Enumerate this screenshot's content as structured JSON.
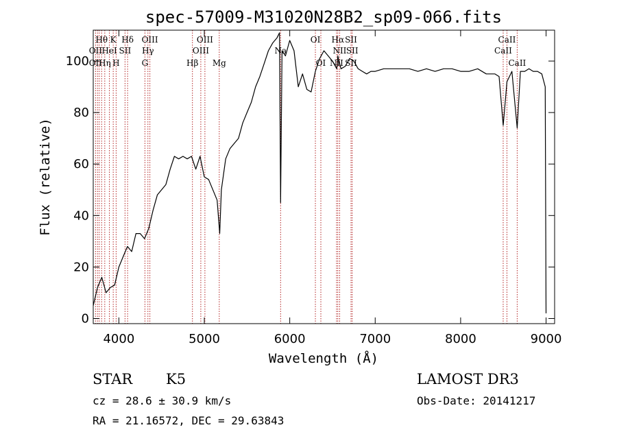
{
  "chart_data": {
    "type": "line",
    "title": "spec-57009-M31020N28B2_sp09-066.fits",
    "xlabel": "Wavelength (Å)",
    "ylabel": "Flux (relative)",
    "xlim": [
      3700,
      9100
    ],
    "ylim": [
      -2,
      112
    ],
    "x_ticks": [
      4000,
      5000,
      6000,
      7000,
      8000,
      9000
    ],
    "x_tick_labels": [
      "4000",
      "5000",
      "6000",
      "7000",
      "8000",
      "9000"
    ],
    "y_ticks": [
      0,
      20,
      40,
      60,
      80,
      100
    ],
    "y_tick_labels": [
      "0",
      "20",
      "40",
      "60",
      "80",
      "100"
    ],
    "grid": false,
    "line_color": "#000000",
    "marker_color": "#b22222",
    "series": [
      {
        "x": [
          3700,
          3750,
          3800,
          3850,
          3900,
          3950,
          4000,
          4050,
          4100,
          4150,
          4200,
          4250,
          4300,
          4350,
          4400,
          4450,
          4500,
          4550,
          4600,
          4650,
          4700,
          4750,
          4800,
          4850,
          4900,
          4950,
          5000,
          5050,
          5100,
          5150,
          5180,
          5200,
          5250,
          5300,
          5350,
          5400,
          5450,
          5500,
          5550,
          5600,
          5650,
          5700,
          5750,
          5800,
          5850,
          5880,
          5893,
          5910,
          5950,
          6000,
          6050,
          6100,
          6150,
          6200,
          6250,
          6300,
          6350,
          6400,
          6450,
          6500,
          6550,
          6563,
          6600,
          6650,
          6700,
          6750,
          6800,
          6850,
          6900,
          6950,
          7000,
          7100,
          7200,
          7300,
          7400,
          7500,
          7600,
          7700,
          7800,
          7900,
          8000,
          8100,
          8200,
          8300,
          8400,
          8450,
          8498,
          8542,
          8600,
          8662,
          8700,
          8750,
          8800,
          8850,
          8900,
          8950,
          8990,
          9000
        ],
        "y": [
          5,
          12,
          16,
          10,
          12,
          13,
          20,
          24,
          28,
          26,
          33,
          33,
          31,
          35,
          42,
          48,
          50,
          52,
          58,
          63,
          62,
          63,
          62,
          63,
          58,
          63,
          55,
          54,
          50,
          46,
          33,
          50,
          62,
          66,
          68,
          70,
          76,
          80,
          84,
          90,
          94,
          99,
          104,
          107,
          109,
          111,
          45,
          104,
          102,
          108,
          104,
          90,
          95,
          89,
          88,
          96,
          101,
          104,
          102,
          100,
          97,
          102,
          97,
          98,
          101,
          100,
          97,
          96,
          95,
          96,
          96,
          97,
          97,
          97,
          97,
          96,
          97,
          96,
          97,
          97,
          96,
          96,
          97,
          95,
          95,
          94,
          75,
          92,
          96,
          74,
          96,
          96,
          97,
          96,
          96,
          95,
          90,
          2
        ]
      }
    ],
    "annotations": [
      {
        "label": "Hθ",
        "x": 3798,
        "row": 1
      },
      {
        "label": "K",
        "x": 3934,
        "row": 1
      },
      {
        "label": "Hδ",
        "x": 4102,
        "row": 1
      },
      {
        "label": "OIII",
        "x": 4363,
        "row": 1
      },
      {
        "label": "OIII",
        "x": 5007,
        "row": 1
      },
      {
        "label": "Na",
        "x": 5893,
        "row": 2
      },
      {
        "label": "OI",
        "x": 6300,
        "row": 1
      },
      {
        "label": "Hα",
        "x": 6563,
        "row": 1
      },
      {
        "label": "SII",
        "x": 6717,
        "row": 1
      },
      {
        "label": "CaII",
        "x": 8542,
        "row": 1
      },
      {
        "label": "OII",
        "x": 3727,
        "row": 2
      },
      {
        "label": "HeI",
        "x": 3889,
        "row": 2
      },
      {
        "label": "SII",
        "x": 4072,
        "row": 2
      },
      {
        "label": "Hγ",
        "x": 4340,
        "row": 2
      },
      {
        "label": "OIII",
        "x": 4959,
        "row": 2
      },
      {
        "label": "NII",
        "x": 6584,
        "row": 2
      },
      {
        "label": "SII",
        "x": 6731,
        "row": 2
      },
      {
        "label": "CaII",
        "x": 8498,
        "row": 2
      },
      {
        "label": "OII",
        "x": 3727,
        "row": 3
      },
      {
        "label": "Hη",
        "x": 3835,
        "row": 3
      },
      {
        "label": "H",
        "x": 3968,
        "row": 3
      },
      {
        "label": "G",
        "x": 4305,
        "row": 3
      },
      {
        "label": "Hβ",
        "x": 4861,
        "row": 3
      },
      {
        "label": "Mg",
        "x": 5175,
        "row": 3
      },
      {
        "label": "OI",
        "x": 6364,
        "row": 3
      },
      {
        "label": "NII",
        "x": 6548,
        "row": 3
      },
      {
        "label": "SII",
        "x": 6717,
        "row": 3
      },
      {
        "label": "CaII",
        "x": 8662,
        "row": 3
      }
    ],
    "marker_lines": [
      3727,
      3750,
      3770,
      3798,
      3835,
      3889,
      3934,
      3968,
      4072,
      4102,
      4305,
      4340,
      4363,
      4861,
      4959,
      5007,
      5175,
      5893,
      6300,
      6364,
      6548,
      6563,
      6584,
      6717,
      6731,
      8498,
      8542,
      8662
    ]
  },
  "info": {
    "object_type": "STAR",
    "subclass": "K5",
    "survey": "LAMOST DR3",
    "velocity": "cz = 28.6 ± 30.9 km/s",
    "obs_date": "Obs-Date: 20141217",
    "coords": "RA =  21.16572, DEC =  29.63843"
  }
}
